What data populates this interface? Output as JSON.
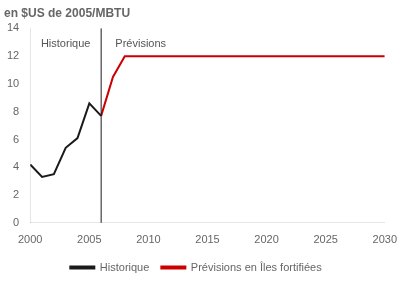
{
  "chart_data": {
    "type": "line",
    "title": "en $US de 2005/MBTU",
    "series": [
      {
        "name": "Historique",
        "color": "#1a1a1a",
        "x": [
          2000,
          2001,
          2002,
          2003,
          2004,
          2005,
          2006
        ],
        "values": [
          4.2,
          3.3,
          3.5,
          5.4,
          6.1,
          8.6,
          7.7
        ]
      },
      {
        "name": "Prévisions en Îles fortifiées",
        "color": "#cc0000",
        "x": [
          2006,
          2007,
          2008,
          2009,
          2010,
          2015,
          2020,
          2025,
          2030
        ],
        "values": [
          7.7,
          10.5,
          12.0,
          12.0,
          12.0,
          12.0,
          12.0,
          12.0,
          12.0
        ]
      }
    ],
    "xlim": [
      2000,
      2030
    ],
    "xticks": [
      2000,
      2005,
      2010,
      2015,
      2020,
      2025,
      2030
    ],
    "ylim": [
      0,
      14
    ],
    "yticks": [
      0,
      2,
      4,
      6,
      8,
      10,
      12,
      14
    ],
    "vlines": [
      {
        "x": 2006,
        "color": "#1a1a1a"
      }
    ],
    "annotations": [
      {
        "text": "Historique",
        "x": 2003.0,
        "y": 13.3
      },
      {
        "text": "Prévisions",
        "x": 2007.2,
        "y": 13.3
      }
    ],
    "grid": false,
    "legend": "bottom"
  }
}
